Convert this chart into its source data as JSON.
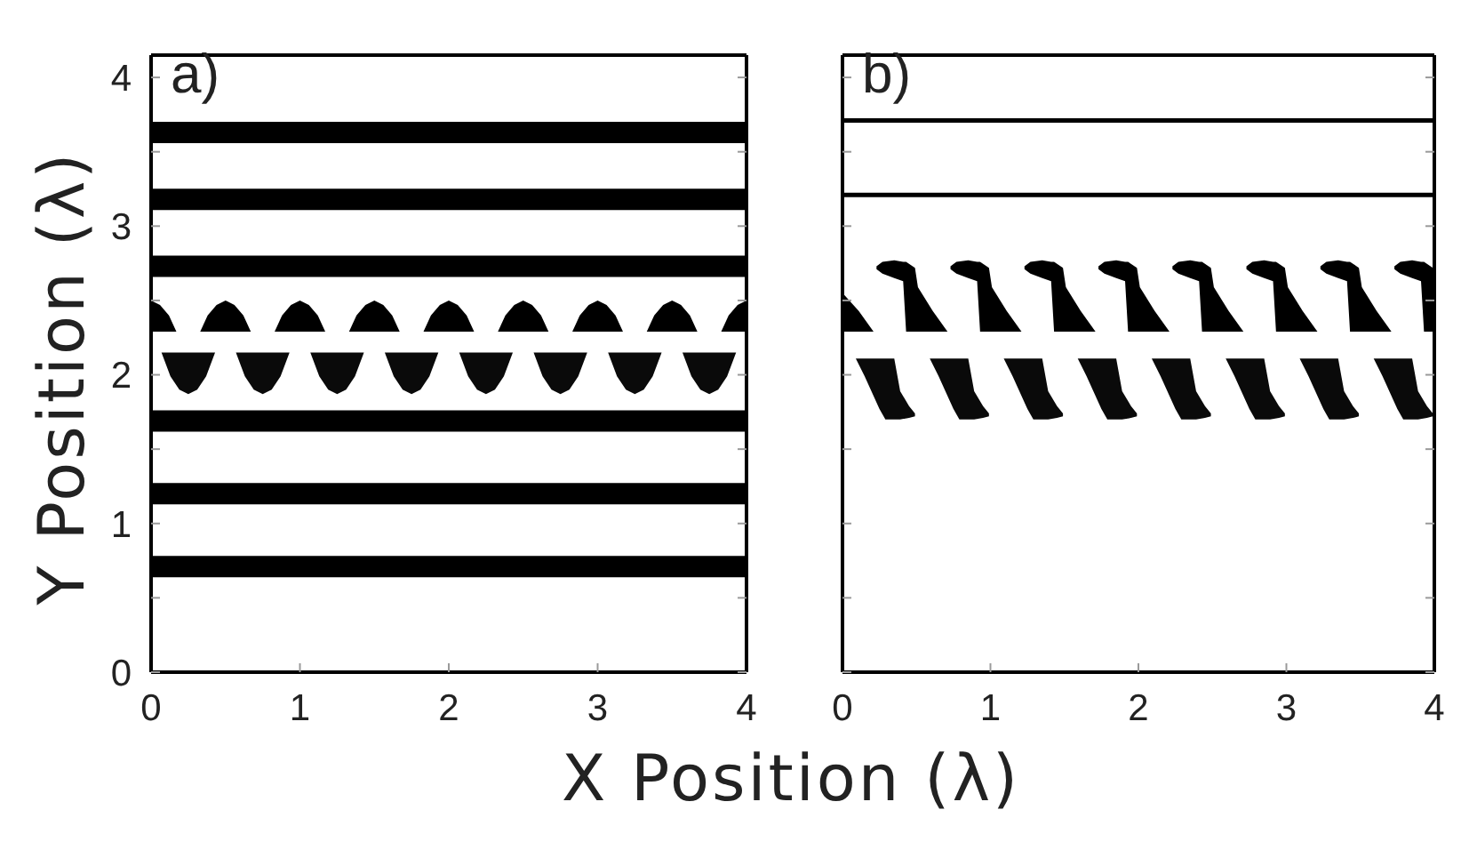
{
  "chart_data": [
    {
      "type": "line",
      "annotations": [
        "a)"
      ],
      "xlabel": "X Position (λ)",
      "ylabel": "Y Position (λ)",
      "xlim": [
        0,
        4
      ],
      "ylim": [
        0,
        4.15
      ],
      "xticks": [
        0,
        1,
        2,
        3,
        4
      ],
      "yticks": [
        0,
        {
          "value": 0.5,
          "label": null
        },
        1,
        {
          "value": 1.5,
          "label": null
        },
        2,
        {
          "value": 2.5,
          "label": null
        },
        3,
        {
          "value": 3.5,
          "label": null
        },
        4
      ],
      "series": [
        {
          "color": "#000000",
          "x": [
            0,
            4
          ],
          "values": [
            3.63,
            3.63
          ]
        },
        {
          "color": "#000000",
          "x": [
            0,
            4
          ],
          "values": [
            3.18,
            3.18
          ]
        },
        {
          "color": "#000000",
          "x": [
            0,
            4
          ],
          "values": [
            2.73,
            2.73
          ]
        },
        {
          "color": "#000000",
          "x": [
            0,
            0.06,
            0.12,
            0.17,
            0.25,
            0.33,
            0.38,
            0.44,
            0.5,
            0.56,
            0.62,
            0.67,
            0.75,
            0.83,
            0.88,
            0.94,
            1,
            1.06,
            1.12,
            1.17,
            1.25,
            1.33,
            1.38,
            1.44,
            1.5,
            1.56,
            1.62,
            1.67,
            1.75,
            1.83,
            1.88,
            1.94,
            2,
            2.06,
            2.12,
            2.17,
            2.25,
            2.33,
            2.38,
            2.44,
            2.5,
            2.56,
            2.62,
            2.67,
            2.75,
            2.83,
            2.88,
            2.94,
            3,
            3.06,
            3.12,
            3.17,
            3.25,
            3.33,
            3.38,
            3.44,
            3.5,
            3.56,
            3.62,
            3.67,
            3.75,
            3.83,
            3.88,
            3.94,
            4
          ],
          "values": [
            null,
            null,
            null,
            null,
            null,
            null,
            null,
            null,
            null,
            null,
            null,
            null,
            null,
            null,
            null,
            null,
            null,
            null,
            null,
            null,
            null,
            null,
            null,
            null,
            null,
            null,
            null,
            null,
            null,
            null,
            null,
            null,
            null,
            null,
            null,
            null,
            null,
            null,
            null,
            null,
            null,
            null,
            null,
            null,
            null,
            null,
            null,
            null,
            null,
            null,
            null,
            null,
            null,
            null,
            null,
            null,
            null,
            null,
            null,
            null,
            null,
            null,
            null,
            null,
            null
          ],
          "lower": [
            2.29,
            2.29,
            2.29,
            2.29,
            null,
            2.29,
            2.29,
            2.29,
            2.29,
            2.29,
            2.29,
            2.29,
            null,
            2.29,
            2.29,
            2.29,
            2.29,
            2.29,
            2.29,
            2.29,
            null,
            2.29,
            2.29,
            2.29,
            2.29,
            2.29,
            2.29,
            2.29,
            null,
            2.29,
            2.29,
            2.29,
            2.29,
            2.29,
            2.29,
            2.29,
            null,
            2.29,
            2.29,
            2.29,
            2.29,
            2.29,
            2.29,
            2.29,
            null,
            2.29,
            2.29,
            2.29,
            2.29,
            2.29,
            2.29,
            2.29,
            null,
            2.29,
            2.29,
            2.29,
            2.29,
            2.29,
            2.29,
            2.29,
            null,
            2.29,
            2.29,
            2.29,
            2.29
          ],
          "upper": [
            2.5,
            2.47,
            2.4,
            2.29,
            null,
            2.29,
            2.4,
            2.47,
            2.5,
            2.47,
            2.4,
            2.29,
            null,
            2.29,
            2.4,
            2.47,
            2.5,
            2.47,
            2.4,
            2.29,
            null,
            2.29,
            2.4,
            2.47,
            2.5,
            2.47,
            2.4,
            2.29,
            null,
            2.29,
            2.4,
            2.47,
            2.5,
            2.47,
            2.4,
            2.29,
            null,
            2.29,
            2.4,
            2.47,
            2.5,
            2.47,
            2.4,
            2.29,
            null,
            2.29,
            2.4,
            2.47,
            2.5,
            2.47,
            2.4,
            2.29,
            null,
            2.29,
            2.4,
            2.47,
            2.5,
            2.47,
            2.4,
            2.29,
            null,
            2.29,
            2.4,
            2.47,
            2.5
          ]
        },
        {
          "color": "#0a0a0a",
          "x": [
            0.07,
            0.13,
            0.19,
            0.25,
            0.31,
            0.37,
            0.43,
            0.5,
            0.57,
            0.63,
            0.69,
            0.75,
            0.81,
            0.87,
            0.93,
            1,
            1.07,
            1.13,
            1.19,
            1.25,
            1.31,
            1.37,
            1.43,
            1.5,
            1.57,
            1.63,
            1.69,
            1.75,
            1.81,
            1.87,
            1.93,
            2,
            2.07,
            2.13,
            2.19,
            2.25,
            2.31,
            2.37,
            2.43,
            2.5,
            2.57,
            2.63,
            2.69,
            2.75,
            2.81,
            2.87,
            2.93,
            3,
            3.07,
            3.13,
            3.19,
            3.25,
            3.31,
            3.37,
            3.43,
            3.5,
            3.57,
            3.63,
            3.69,
            3.75,
            3.81,
            3.87,
            3.93
          ],
          "values": [
            null,
            null,
            null,
            null,
            null,
            null,
            null,
            null,
            null,
            null,
            null,
            null,
            null,
            null,
            null,
            null,
            null,
            null,
            null,
            null,
            null,
            null,
            null,
            null,
            null,
            null,
            null,
            null,
            null,
            null,
            null,
            null,
            null,
            null,
            null,
            null,
            null,
            null,
            null,
            null,
            null,
            null,
            null,
            null,
            null,
            null,
            null,
            null,
            null,
            null,
            null,
            null,
            null,
            null,
            null,
            null,
            null,
            null,
            null,
            null,
            null,
            null,
            null
          ],
          "lower": [
            2.15,
            1.99,
            1.9,
            1.87,
            1.9,
            1.99,
            2.15,
            null,
            2.15,
            1.99,
            1.9,
            1.87,
            1.9,
            1.99,
            2.15,
            null,
            2.15,
            1.99,
            1.9,
            1.87,
            1.9,
            1.99,
            2.15,
            null,
            2.15,
            1.99,
            1.9,
            1.87,
            1.9,
            1.99,
            2.15,
            null,
            2.15,
            1.99,
            1.9,
            1.87,
            1.9,
            1.99,
            2.15,
            null,
            2.15,
            1.99,
            1.9,
            1.87,
            1.9,
            1.99,
            2.15,
            null,
            2.15,
            1.99,
            1.9,
            1.87,
            1.9,
            1.99,
            2.15,
            null,
            2.15,
            1.99,
            1.9,
            1.87,
            1.9,
            1.99,
            2.15
          ],
          "upper": [
            2.15,
            2.15,
            2.15,
            2.15,
            2.15,
            2.15,
            2.15,
            null,
            2.15,
            2.15,
            2.15,
            2.15,
            2.15,
            2.15,
            2.15,
            null,
            2.15,
            2.15,
            2.15,
            2.15,
            2.15,
            2.15,
            2.15,
            null,
            2.15,
            2.15,
            2.15,
            2.15,
            2.15,
            2.15,
            2.15,
            null,
            2.15,
            2.15,
            2.15,
            2.15,
            2.15,
            2.15,
            2.15,
            null,
            2.15,
            2.15,
            2.15,
            2.15,
            2.15,
            2.15,
            2.15,
            null,
            2.15,
            2.15,
            2.15,
            2.15,
            2.15,
            2.15,
            2.15,
            null,
            2.15,
            2.15,
            2.15,
            2.15,
            2.15,
            2.15,
            2.15
          ]
        },
        {
          "color": "#000000",
          "x": [
            0,
            4
          ],
          "values": [
            1.69,
            1.69
          ]
        },
        {
          "color": "#000000",
          "x": [
            0,
            4
          ],
          "values": [
            1.2,
            1.2
          ]
        },
        {
          "color": "#000000",
          "x": [
            0,
            4
          ],
          "values": [
            0.71,
            0.71
          ]
        }
      ]
    },
    {
      "type": "line",
      "annotations": [
        "b)"
      ],
      "xlim": [
        0,
        4
      ],
      "ylim": [
        0,
        4.15
      ],
      "xticks": [
        0,
        1,
        2,
        3,
        4
      ],
      "yticks": [
        0,
        {
          "value": 0.5,
          "label": null
        },
        1,
        {
          "value": 1.5,
          "label": null
        },
        2,
        {
          "value": 2.5,
          "label": null
        },
        3,
        {
          "value": 3.5,
          "label": null
        },
        4
      ],
      "tick_labels": "x",
      "series": [
        {
          "color": "#000000",
          "x": [
            0,
            4
          ],
          "values": [
            3.71,
            3.71
          ]
        },
        {
          "color": "#000000",
          "x": [
            0,
            4
          ],
          "values": [
            3.21,
            3.21
          ]
        },
        {
          "color": "#000000",
          "x": [
            0,
            0.11,
            0.21,
            0.22,
            0.23,
            0.27,
            0.35,
            0.41,
            0.43,
            0.49,
            0.51,
            0.61,
            0.71,
            0.72,
            0.73,
            0.77,
            0.85,
            0.91,
            0.93,
            0.99,
            1.01,
            1.11,
            1.21,
            1.22,
            1.23,
            1.27,
            1.35,
            1.41,
            1.43,
            1.49,
            1.51,
            1.61,
            1.71,
            1.72,
            1.73,
            1.77,
            1.85,
            1.91,
            1.93,
            1.99,
            2.01,
            2.11,
            2.21,
            2.22,
            2.23,
            2.27,
            2.35,
            2.41,
            2.43,
            2.49,
            2.51,
            2.61,
            2.71,
            2.72,
            2.73,
            2.77,
            2.85,
            2.91,
            2.93,
            2.99,
            3.01,
            3.11,
            3.21,
            3.22,
            3.23,
            3.27,
            3.35,
            3.41,
            3.43,
            3.49,
            3.51,
            3.61,
            3.71,
            3.72,
            3.73,
            3.77,
            3.85,
            3.91,
            3.93,
            3.99,
            4
          ],
          "values": [
            null,
            null,
            null,
            null,
            null,
            null,
            null,
            null,
            null,
            null,
            null,
            null,
            null,
            null,
            null,
            null,
            null,
            null,
            null,
            null,
            null,
            null,
            null,
            null,
            null,
            null,
            null,
            null,
            null,
            null,
            null,
            null,
            null,
            null,
            null,
            null,
            null,
            null,
            null,
            null,
            null,
            null,
            null,
            null,
            null,
            null,
            null,
            null,
            null,
            null,
            null,
            null,
            null,
            null,
            null,
            null,
            null,
            null,
            null,
            null,
            null,
            null,
            null,
            null,
            null,
            null,
            null,
            null,
            null,
            null,
            null,
            null,
            null,
            null,
            null,
            null,
            null,
            null,
            null,
            null,
            null
          ],
          "lower": [
            2.29,
            2.29,
            2.29,
            null,
            2.71,
            2.68,
            2.65,
            2.63,
            2.29,
            2.29,
            2.29,
            2.29,
            2.29,
            null,
            2.71,
            2.68,
            2.65,
            2.63,
            2.29,
            2.29,
            2.29,
            2.29,
            2.29,
            null,
            2.71,
            2.68,
            2.65,
            2.63,
            2.29,
            2.29,
            2.29,
            2.29,
            2.29,
            null,
            2.71,
            2.68,
            2.65,
            2.63,
            2.29,
            2.29,
            2.29,
            2.29,
            2.29,
            null,
            2.71,
            2.68,
            2.65,
            2.63,
            2.29,
            2.29,
            2.29,
            2.29,
            2.29,
            null,
            2.71,
            2.68,
            2.65,
            2.63,
            2.29,
            2.29,
            2.29,
            2.29,
            2.29,
            null,
            2.71,
            2.68,
            2.65,
            2.63,
            2.29,
            2.29,
            2.29,
            2.29,
            2.29,
            null,
            2.71,
            2.68,
            2.65,
            2.63,
            2.29,
            2.29,
            2.29
          ],
          "upper": [
            2.55,
            2.43,
            2.29,
            null,
            2.73,
            2.76,
            2.77,
            2.76,
            2.76,
            2.72,
            2.59,
            2.43,
            2.29,
            null,
            2.73,
            2.76,
            2.77,
            2.76,
            2.76,
            2.72,
            2.59,
            2.43,
            2.29,
            null,
            2.73,
            2.76,
            2.77,
            2.76,
            2.76,
            2.72,
            2.59,
            2.43,
            2.29,
            null,
            2.73,
            2.76,
            2.77,
            2.76,
            2.76,
            2.72,
            2.59,
            2.43,
            2.29,
            null,
            2.73,
            2.76,
            2.77,
            2.76,
            2.76,
            2.72,
            2.59,
            2.43,
            2.29,
            null,
            2.73,
            2.76,
            2.77,
            2.76,
            2.76,
            2.72,
            2.59,
            2.43,
            2.29,
            null,
            2.73,
            2.76,
            2.77,
            2.76,
            2.76,
            2.72,
            2.59,
            2.43,
            2.29,
            null,
            2.73,
            2.76,
            2.77,
            2.76,
            2.76,
            2.72,
            2.68
          ]
        },
        {
          "color": "#0a0a0a",
          "x": [
            0.09,
            0.15,
            0.25,
            0.29,
            0.35,
            0.39,
            0.45,
            0.49,
            0.54,
            0.59,
            0.65,
            0.75,
            0.79,
            0.85,
            0.89,
            0.95,
            0.99,
            1.04,
            1.09,
            1.15,
            1.25,
            1.29,
            1.35,
            1.39,
            1.45,
            1.49,
            1.54,
            1.59,
            1.65,
            1.75,
            1.79,
            1.85,
            1.89,
            1.95,
            1.99,
            2.04,
            2.09,
            2.15,
            2.25,
            2.29,
            2.35,
            2.39,
            2.45,
            2.49,
            2.54,
            2.59,
            2.65,
            2.75,
            2.79,
            2.85,
            2.89,
            2.95,
            2.99,
            3.04,
            3.09,
            3.15,
            3.25,
            3.29,
            3.35,
            3.39,
            3.45,
            3.49,
            3.54,
            3.59,
            3.65,
            3.75,
            3.79,
            3.85,
            3.89,
            3.95,
            3.99
          ],
          "values": [
            null,
            null,
            null,
            null,
            null,
            null,
            null,
            null,
            null,
            null,
            null,
            null,
            null,
            null,
            null,
            null,
            null,
            null,
            null,
            null,
            null,
            null,
            null,
            null,
            null,
            null,
            null,
            null,
            null,
            null,
            null,
            null,
            null,
            null,
            null,
            null,
            null,
            null,
            null,
            null,
            null,
            null,
            null,
            null,
            null,
            null,
            null,
            null,
            null,
            null,
            null,
            null,
            null,
            null,
            null,
            null,
            null,
            null,
            null,
            null,
            null,
            null,
            null,
            null,
            null,
            null,
            null,
            null,
            null,
            null,
            null
          ],
          "lower": [
            2.11,
            1.99,
            1.77,
            1.7,
            1.7,
            1.7,
            1.71,
            1.72,
            null,
            2.11,
            1.99,
            1.77,
            1.7,
            1.7,
            1.7,
            1.71,
            1.72,
            null,
            2.11,
            1.99,
            1.77,
            1.7,
            1.7,
            1.7,
            1.71,
            1.72,
            null,
            2.11,
            1.99,
            1.77,
            1.7,
            1.7,
            1.7,
            1.71,
            1.72,
            null,
            2.11,
            1.99,
            1.77,
            1.7,
            1.7,
            1.7,
            1.71,
            1.72,
            null,
            2.11,
            1.99,
            1.77,
            1.7,
            1.7,
            1.7,
            1.71,
            1.72,
            null,
            2.11,
            1.99,
            1.77,
            1.7,
            1.7,
            1.7,
            1.71,
            1.72,
            null,
            2.11,
            1.99,
            1.77,
            1.7,
            1.7,
            1.7,
            1.71,
            1.72
          ],
          "upper": [
            2.11,
            2.11,
            2.11,
            2.11,
            2.11,
            1.89,
            1.79,
            1.74,
            null,
            2.11,
            2.11,
            2.11,
            2.11,
            2.11,
            1.89,
            1.79,
            1.74,
            null,
            2.11,
            2.11,
            2.11,
            2.11,
            2.11,
            1.89,
            1.79,
            1.74,
            null,
            2.11,
            2.11,
            2.11,
            2.11,
            2.11,
            1.89,
            1.79,
            1.74,
            null,
            2.11,
            2.11,
            2.11,
            2.11,
            2.11,
            1.89,
            1.79,
            1.74,
            null,
            2.11,
            2.11,
            2.11,
            2.11,
            2.11,
            1.89,
            1.79,
            1.74,
            null,
            2.11,
            2.11,
            2.11,
            2.11,
            2.11,
            1.89,
            1.79,
            1.74,
            null,
            2.11,
            2.11,
            2.11,
            2.11,
            2.11,
            1.89,
            1.79,
            1.74
          ]
        }
      ]
    }
  ]
}
